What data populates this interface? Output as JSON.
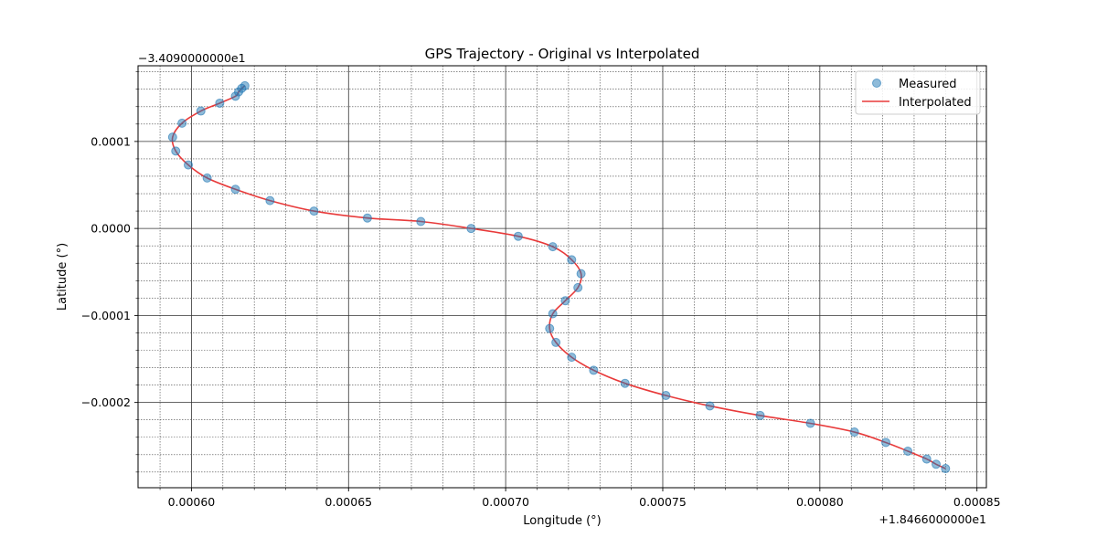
{
  "chart_data": {
    "type": "scatter",
    "title": "GPS Trajectory - Original vs Interpolated",
    "xlabel": "Longitude (°)",
    "ylabel": "Latitude (°)",
    "x_offset_label": "+1.8466000000e1",
    "y_offset_label": "−3.4090000000e1",
    "xlim": [
      0.000583,
      0.000853
    ],
    "ylim": [
      -0.000298,
      0.000187
    ],
    "x_ticks": [
      0.0006,
      0.00065,
      0.0007,
      0.00075,
      0.0008,
      0.00085
    ],
    "x_tick_labels": [
      "0.00060",
      "0.00065",
      "0.00070",
      "0.00075",
      "0.00080",
      "0.00085"
    ],
    "y_ticks": [
      -0.0002,
      -0.0001,
      0.0,
      0.0001
    ],
    "y_tick_labels": [
      "−0.0002",
      "−0.0001",
      "0.0000",
      "0.0001"
    ],
    "grid": true,
    "minor_grid": true,
    "legend_position": "top-right",
    "colors": {
      "measured": "#1f77b4",
      "interpolated": "#e83a3a"
    },
    "series": [
      {
        "name": "Measured",
        "kind": "scatter",
        "x": [
          0.000617,
          0.000616,
          0.000615,
          0.000614,
          0.000609,
          0.000603,
          0.000597,
          0.000594,
          0.000595,
          0.000599,
          0.000605,
          0.000614,
          0.000625,
          0.000639,
          0.000656,
          0.000673,
          0.000689,
          0.000704,
          0.000715,
          0.000721,
          0.000724,
          0.000723,
          0.000719,
          0.000715,
          0.000714,
          0.000716,
          0.000721,
          0.000728,
          0.000738,
          0.000751,
          0.000765,
          0.000781,
          0.000797,
          0.000811,
          0.000821,
          0.000828,
          0.000834,
          0.000837,
          0.00084
        ],
        "y": [
          0.000164,
          0.000161,
          0.000157,
          0.000152,
          0.000144,
          0.000135,
          0.000121,
          0.000105,
          8.9e-05,
          7.3e-05,
          5.8e-05,
          4.5e-05,
          3.2e-05,
          2e-05,
          1.2e-05,
          8e-06,
          0.0,
          -9e-06,
          -2.1e-05,
          -3.6e-05,
          -5.2e-05,
          -6.8e-05,
          -8.3e-05,
          -9.8e-05,
          -0.000115,
          -0.000131,
          -0.000148,
          -0.000163,
          -0.000178,
          -0.000192,
          -0.000204,
          -0.000215,
          -0.000224,
          -0.000234,
          -0.000246,
          -0.000256,
          -0.000265,
          -0.000271,
          -0.000276
        ]
      },
      {
        "name": "Interpolated",
        "kind": "line"
      }
    ]
  }
}
